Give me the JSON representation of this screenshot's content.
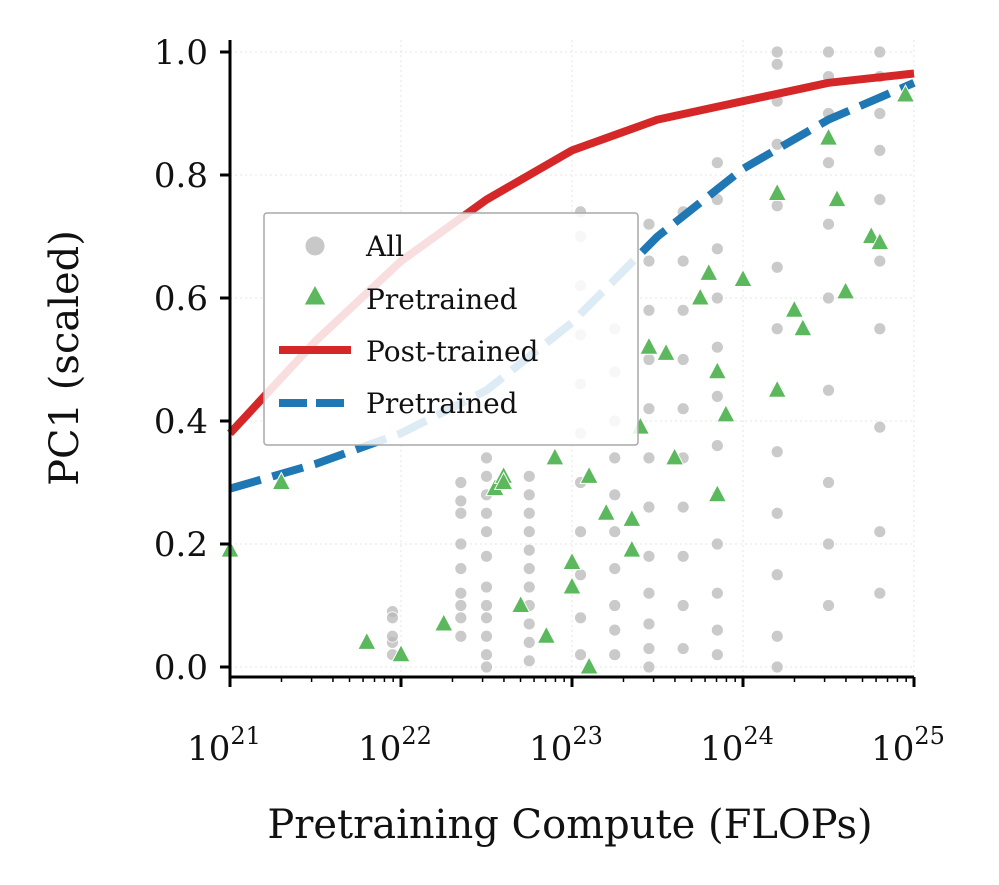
{
  "chart_data": {
    "type": "scatter",
    "title": "",
    "xlabel": "Pretraining Compute (FLOPs)",
    "ylabel": "PC1 (scaled)",
    "xscale": "log",
    "xlim_exp": [
      21,
      25
    ],
    "ylim": [
      0.0,
      1.0
    ],
    "xticks_exp": [
      21,
      22,
      23,
      24,
      25
    ],
    "xtick_base": "10",
    "xtick_labels": [
      "21",
      "22",
      "23",
      "24",
      "25"
    ],
    "yticks": [
      0.0,
      0.2,
      0.4,
      0.6,
      0.8,
      1.0
    ],
    "ytick_labels": [
      "0.0",
      "0.2",
      "0.4",
      "0.6",
      "0.8",
      "1.0"
    ],
    "grid": true,
    "legend_position": "center-left",
    "colors": {
      "all": "#b8b8b8",
      "pretrained_points": "#5cb85c",
      "post_trained_fit": "#d62728",
      "pretrained_fit": "#1f77b4"
    },
    "legend": [
      {
        "label": "All",
        "kind": "circle",
        "color": "#c8c8c8"
      },
      {
        "label": "Pretrained",
        "kind": "triangle",
        "color": "#5cb85c"
      },
      {
        "label": "Post-trained",
        "kind": "solid-line",
        "color": "#d62728"
      },
      {
        "label": "Pretrained",
        "kind": "dashed-line",
        "color": "#1f77b4"
      }
    ],
    "series": [
      {
        "name": "All",
        "kind": "scatter-circle",
        "columns": [
          {
            "x_exp": 21.95,
            "y": [
              0.04,
              0.09,
              0.08,
              0.05,
              0.02
            ]
          },
          {
            "x_exp": 22.35,
            "y": [
              0.05,
              0.1,
              0.2,
              0.25,
              0.27,
              0.3,
              0.16,
              0.12,
              0.08
            ]
          },
          {
            "x_exp": 22.5,
            "y": [
              0.0,
              0.02,
              0.05,
              0.08,
              0.1,
              0.13,
              0.18,
              0.22,
              0.25,
              0.28,
              0.31,
              0.34
            ]
          },
          {
            "x_exp": 22.75,
            "y": [
              0.01,
              0.04,
              0.07,
              0.1,
              0.13,
              0.16,
              0.19,
              0.22,
              0.25,
              0.28,
              0.31
            ]
          },
          {
            "x_exp": 23.05,
            "y": [
              0.02,
              0.08,
              0.15,
              0.22,
              0.3,
              0.38,
              0.46,
              0.54,
              0.62,
              0.7,
              0.74
            ]
          },
          {
            "x_exp": 23.25,
            "y": [
              0.02,
              0.06,
              0.1,
              0.16,
              0.22,
              0.28,
              0.34,
              0.4,
              0.48,
              0.55
            ]
          },
          {
            "x_exp": 23.45,
            "y": [
              0.0,
              0.03,
              0.07,
              0.12,
              0.18,
              0.26,
              0.34,
              0.42,
              0.5,
              0.58,
              0.66,
              0.72
            ]
          },
          {
            "x_exp": 23.65,
            "y": [
              0.03,
              0.1,
              0.18,
              0.26,
              0.34,
              0.42,
              0.5,
              0.58,
              0.66,
              0.74
            ]
          },
          {
            "x_exp": 23.85,
            "y": [
              0.02,
              0.06,
              0.12,
              0.2,
              0.28,
              0.36,
              0.44,
              0.52,
              0.6,
              0.68,
              0.76,
              0.82
            ]
          },
          {
            "x_exp": 24.2,
            "y": [
              0.0,
              0.05,
              0.15,
              0.25,
              0.35,
              0.45,
              0.55,
              0.65,
              0.75,
              0.85,
              0.92,
              0.98,
              1.0
            ]
          },
          {
            "x_exp": 24.5,
            "y": [
              0.1,
              0.2,
              0.3,
              0.45,
              0.6,
              0.72,
              0.82,
              0.9,
              0.96,
              1.0
            ]
          },
          {
            "x_exp": 24.8,
            "y": [
              0.12,
              0.22,
              0.39,
              0.55,
              0.66,
              0.76,
              0.84,
              0.9,
              0.96,
              1.0
            ]
          }
        ]
      },
      {
        "name": "Pretrained",
        "kind": "scatter-triangle",
        "x_exp": [
          21.0,
          21.3,
          21.8,
          22.0,
          22.25,
          22.55,
          22.6,
          22.6,
          22.7,
          22.85,
          22.9,
          23.0,
          23.0,
          23.1,
          23.1,
          23.2,
          23.35,
          23.35,
          23.4,
          23.45,
          23.55,
          23.6,
          23.75,
          23.8,
          23.85,
          23.85,
          23.9,
          24.0,
          24.2,
          24.2,
          24.3,
          24.35,
          24.5,
          24.55,
          24.6,
          24.75,
          24.8,
          24.95
        ],
        "y": [
          0.19,
          0.3,
          0.04,
          0.02,
          0.07,
          0.29,
          0.31,
          0.3,
          0.1,
          0.05,
          0.34,
          0.17,
          0.13,
          0.31,
          0.0,
          0.25,
          0.19,
          0.24,
          0.39,
          0.52,
          0.51,
          0.34,
          0.6,
          0.64,
          0.48,
          0.28,
          0.41,
          0.63,
          0.77,
          0.45,
          0.58,
          0.55,
          0.86,
          0.76,
          0.61,
          0.7,
          0.69,
          0.93
        ]
      },
      {
        "name": "Post-trained",
        "kind": "fit-line",
        "x_exp": [
          21.0,
          21.5,
          22.0,
          22.5,
          23.0,
          23.5,
          24.0,
          24.5,
          25.0
        ],
        "y": [
          0.38,
          0.53,
          0.66,
          0.76,
          0.84,
          0.89,
          0.92,
          0.95,
          0.965
        ]
      },
      {
        "name": "Pretrained",
        "kind": "fit-line-dashed",
        "x_exp": [
          21.0,
          21.5,
          22.0,
          22.5,
          23.0,
          23.5,
          24.0,
          24.5,
          25.0
        ],
        "y": [
          0.29,
          0.33,
          0.38,
          0.45,
          0.56,
          0.7,
          0.81,
          0.89,
          0.95
        ]
      }
    ]
  }
}
